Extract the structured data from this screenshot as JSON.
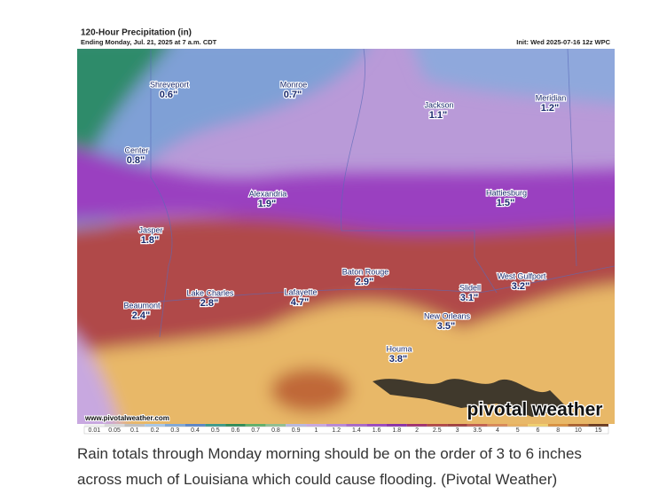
{
  "header": {
    "title": "120-Hour Precipitation (in)",
    "subtitle": "Ending Monday, Jul. 21, 2025 at 7 a.m. CDT",
    "init": "Init: Wed 2025-07-16 12z WPC"
  },
  "cities": [
    {
      "name": "Shreveport",
      "amount": "0.6\""
    },
    {
      "name": "Monroe",
      "amount": "0.7\""
    },
    {
      "name": "Jackson",
      "amount": "1.1\""
    },
    {
      "name": "Meridian",
      "amount": "1.2\""
    },
    {
      "name": "Center",
      "amount": "0.8\""
    },
    {
      "name": "Alexandria",
      "amount": "1.9\""
    },
    {
      "name": "Hattiesburg",
      "amount": "1.5\""
    },
    {
      "name": "Jasper",
      "amount": "1.8\""
    },
    {
      "name": "Baton Rouge",
      "amount": "2.9\""
    },
    {
      "name": "Lake Charles",
      "amount": "2.8\""
    },
    {
      "name": "Lafayette",
      "amount": "4.7\""
    },
    {
      "name": "West Gulfport",
      "amount": "3.2\""
    },
    {
      "name": "Slidell",
      "amount": "3.1\""
    },
    {
      "name": "Beaumont",
      "amount": "2.4\""
    },
    {
      "name": "New Orleans",
      "amount": "3.5\""
    },
    {
      "name": "Houma",
      "amount": "3.8\""
    }
  ],
  "watermark": {
    "url": "www.pivotalweather.com",
    "brand": "pivotal weather"
  },
  "scale": {
    "labels": [
      "0.01",
      "0.05",
      "0.1",
      "0.2",
      "0.3",
      "0.4",
      "0.5",
      "0.6",
      "0.7",
      "0.8",
      "0.9",
      "1",
      "1.2",
      "1.4",
      "1.6",
      "1.8",
      "2",
      "2.5",
      "3",
      "3.5",
      "4",
      "5",
      "6",
      "8",
      "10",
      "15"
    ],
    "colors": [
      "#f2f2f2",
      "#d9d9d9",
      "#bfbfbf",
      "#a8c8e8",
      "#7fa8d8",
      "#5a86c8",
      "#3a9a8a",
      "#2e8b57",
      "#5fb06a",
      "#8fbf8f",
      "#b8b8e0",
      "#c8a8e0",
      "#b888d8",
      "#a868c8",
      "#9a48c0",
      "#8a30a8",
      "#a03070",
      "#b04848",
      "#a04040",
      "#c06050",
      "#d88858",
      "#e8b060",
      "#f0d070",
      "#d89040",
      "#a86030",
      "#6a3a20"
    ]
  },
  "caption": "Rain totals through Monday morning should be on the order of 3 to 6 inches across much of Louisiana which could cause flooding. (Pivotal Weather)"
}
